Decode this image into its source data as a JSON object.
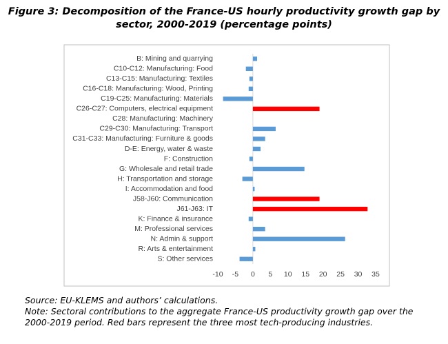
{
  "chart_data": {
    "type": "hbar",
    "title": "Figure 3: Decomposition of the France-US hourly productivity growth gap by sector, 2000-2019 (percentage points)",
    "categories": [
      "B: Mining and quarrying",
      "C10-C12: Manufacturing: Food",
      "C13-C15: Manufacturing: Textiles",
      "C16-C18: Manufacturing: Wood, Printing",
      "C19-C25: Manufacturing: Materials",
      "C26-C27: Computers, electrical equipment",
      "C28: Manufacturing: Machinery",
      "C29-C30: Manufacturing: Transport",
      "C31-C33: Manufacturing: Furniture & goods",
      "D-E: Energy, water & waste",
      "F: Construction",
      "G: Wholesale and retail trade",
      "H: Transportation and storage",
      "I: Accommodation and food",
      "J58-J60: Communication",
      "J61-J63: IT",
      "K: Finance & insurance",
      "M: Professional services",
      "N: Admin & support",
      "R: Arts & entertainment",
      "S: Other services"
    ],
    "values": [
      1.2,
      -2,
      -1,
      -1.2,
      -8.5,
      19,
      0,
      6.5,
      3.5,
      2.2,
      -1,
      14.7,
      -3,
      0.5,
      19,
      32.7,
      -1.2,
      3.5,
      26.3,
      0.7,
      -3.8
    ],
    "colors": [
      "#5b9bd5",
      "#5b9bd5",
      "#5b9bd5",
      "#5b9bd5",
      "#5b9bd5",
      "#ff0000",
      "#5b9bd5",
      "#5b9bd5",
      "#5b9bd5",
      "#5b9bd5",
      "#5b9bd5",
      "#5b9bd5",
      "#5b9bd5",
      "#5b9bd5",
      "#ff0000",
      "#ff0000",
      "#5b9bd5",
      "#5b9bd5",
      "#5b9bd5",
      "#5b9bd5",
      "#5b9bd5"
    ],
    "xlim": [
      -10,
      35
    ],
    "xticks": [
      -10,
      -5,
      0,
      5,
      10,
      15,
      20,
      25,
      30,
      35
    ],
    "source": "Source: EU-KLEMS and authors’ calculations.",
    "note": "Note: Sectoral contributions to the aggregate France-US productivity growth gap over the 2000-2019 period. Red bars represent the three most tech-producing industries."
  }
}
